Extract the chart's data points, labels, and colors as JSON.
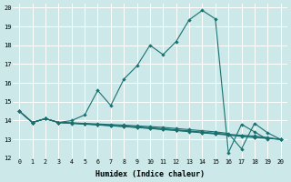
{
  "xlabel": "Humidex (Indice chaleur)",
  "xlim": [
    -0.5,
    20.5
  ],
  "ylim": [
    12,
    20.2
  ],
  "yticks": [
    12,
    13,
    14,
    15,
    16,
    17,
    18,
    19,
    20
  ],
  "xticks": [
    0,
    1,
    2,
    3,
    4,
    5,
    6,
    7,
    8,
    9,
    10,
    11,
    12,
    13,
    14,
    15,
    16,
    17,
    18,
    19,
    20
  ],
  "bg_color": "#cce8e8",
  "grid_color": "#ffffff",
  "line_color": "#1a7070",
  "lines": [
    [
      14.5,
      13.9,
      14.1,
      13.9,
      14.0,
      14.3,
      15.6,
      14.8,
      16.2,
      16.9,
      18.0,
      17.5,
      18.2,
      19.35,
      19.85,
      19.4,
      12.3,
      13.8,
      13.4,
      13.0,
      null
    ],
    [
      14.5,
      13.9,
      14.1,
      13.9,
      13.88,
      13.85,
      13.82,
      13.79,
      13.76,
      13.72,
      13.68,
      13.64,
      13.58,
      13.52,
      13.46,
      13.4,
      13.32,
      12.5,
      13.85,
      13.35,
      13.0
    ],
    [
      14.5,
      13.9,
      14.1,
      13.9,
      13.87,
      13.83,
      13.79,
      13.75,
      13.71,
      13.67,
      13.62,
      13.57,
      13.51,
      13.45,
      13.39,
      13.33,
      13.27,
      13.22,
      13.18,
      13.1,
      13.0
    ],
    [
      14.5,
      13.9,
      14.1,
      13.9,
      13.86,
      13.82,
      13.78,
      13.73,
      13.69,
      13.64,
      13.59,
      13.54,
      13.49,
      13.43,
      13.37,
      13.31,
      13.25,
      13.18,
      13.12,
      13.07,
      13.0
    ],
    [
      14.5,
      13.9,
      14.1,
      13.9,
      13.85,
      13.81,
      13.77,
      13.72,
      13.68,
      13.63,
      13.58,
      13.52,
      13.47,
      13.41,
      13.35,
      13.29,
      13.23,
      13.16,
      13.1,
      13.05,
      13.0
    ]
  ]
}
